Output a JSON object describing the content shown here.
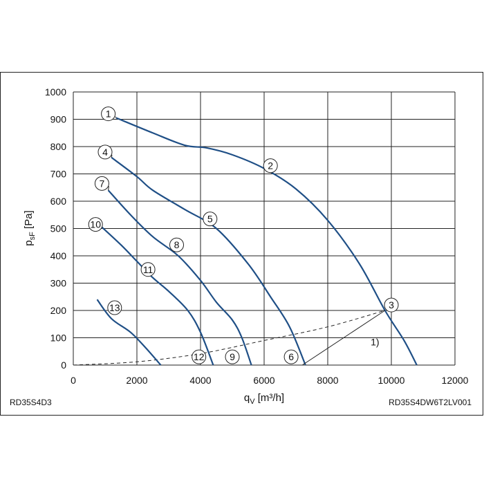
{
  "chart_data": {
    "type": "line",
    "xlabel": "q",
    "xlabel_sub": "V",
    "xlabel_unit": " [m³/h]",
    "ylabel": "p",
    "ylabel_sub": "sF",
    "ylabel_unit": " [Pa]",
    "xlim": [
      0,
      12000
    ],
    "ylim": [
      0,
      1000
    ],
    "x_ticks": [
      0,
      2000,
      4000,
      6000,
      8000,
      10000,
      12000
    ],
    "y_ticks": [
      0,
      100,
      200,
      300,
      400,
      500,
      600,
      700,
      800,
      900,
      1000
    ],
    "grid": true,
    "footer_left": "RD35S4D3",
    "footer_right": "RD35S4DW6T2LV001",
    "series": [
      {
        "id": "A",
        "points": [
          [
            1350,
            905
          ],
          [
            2500,
            850
          ],
          [
            3500,
            805
          ],
          [
            4200,
            795
          ],
          [
            5000,
            770
          ],
          [
            6000,
            720
          ],
          [
            7000,
            645
          ],
          [
            8000,
            530
          ],
          [
            9000,
            370
          ],
          [
            9800,
            200
          ],
          [
            10400,
            90
          ],
          [
            10800,
            0
          ]
        ]
      },
      {
        "id": "B",
        "points": [
          [
            1200,
            760
          ],
          [
            2000,
            690
          ],
          [
            2500,
            640
          ],
          [
            3500,
            570
          ],
          [
            4500,
            500
          ],
          [
            5500,
            370
          ],
          [
            6200,
            250
          ],
          [
            6800,
            140
          ],
          [
            7300,
            0
          ]
        ]
      },
      {
        "id": "C",
        "points": [
          [
            1100,
            640
          ],
          [
            1800,
            550
          ],
          [
            2500,
            470
          ],
          [
            3300,
            400
          ],
          [
            4000,
            310
          ],
          [
            4500,
            230
          ],
          [
            5000,
            165
          ],
          [
            5300,
            100
          ],
          [
            5600,
            0
          ]
        ]
      },
      {
        "id": "D",
        "points": [
          [
            900,
            505
          ],
          [
            1500,
            440
          ],
          [
            2000,
            380
          ],
          [
            2500,
            320
          ],
          [
            3000,
            270
          ],
          [
            3600,
            200
          ],
          [
            4000,
            120
          ],
          [
            4400,
            0
          ]
        ]
      },
      {
        "id": "E",
        "points": [
          [
            750,
            240
          ],
          [
            1200,
            170
          ],
          [
            1800,
            120
          ],
          [
            2300,
            60
          ],
          [
            2750,
            0
          ]
        ]
      }
    ],
    "system_curve": {
      "style": "dashed",
      "points": [
        [
          0,
          0
        ],
        [
          2000,
          12
        ],
        [
          4000,
          42
        ],
        [
          6000,
          90
        ],
        [
          8000,
          140
        ],
        [
          9800,
          200
        ]
      ]
    },
    "annotations": [
      {
        "text": "1",
        "x": 1100,
        "y": 920,
        "target": [
          1350,
          905
        ]
      },
      {
        "text": "2",
        "x": 6200,
        "y": 730
      },
      {
        "text": "3",
        "x": 10000,
        "y": 220
      },
      {
        "text": "4",
        "x": 1000,
        "y": 780,
        "target": [
          1200,
          760
        ]
      },
      {
        "text": "5",
        "x": 4300,
        "y": 535
      },
      {
        "text": "6",
        "x": 6850,
        "y": 30
      },
      {
        "text": "7",
        "x": 900,
        "y": 665,
        "target": [
          1100,
          640
        ]
      },
      {
        "text": "8",
        "x": 3250,
        "y": 440
      },
      {
        "text": "9",
        "x": 5000,
        "y": 30
      },
      {
        "text": "10",
        "x": 700,
        "y": 515,
        "target": [
          900,
          505
        ]
      },
      {
        "text": "11",
        "x": 2350,
        "y": 350
      },
      {
        "text": "12",
        "x": 3950,
        "y": 30
      },
      {
        "text": "13",
        "x": 1300,
        "y": 210
      }
    ],
    "note": {
      "text": "1)",
      "x": 9350,
      "y": 85,
      "lines": [
        [
          [
            7200,
            0
          ],
          [
            9800,
            200
          ]
        ],
        [
          [
            7200,
            100
          ],
          [
            9100,
            100
          ]
        ]
      ]
    }
  }
}
